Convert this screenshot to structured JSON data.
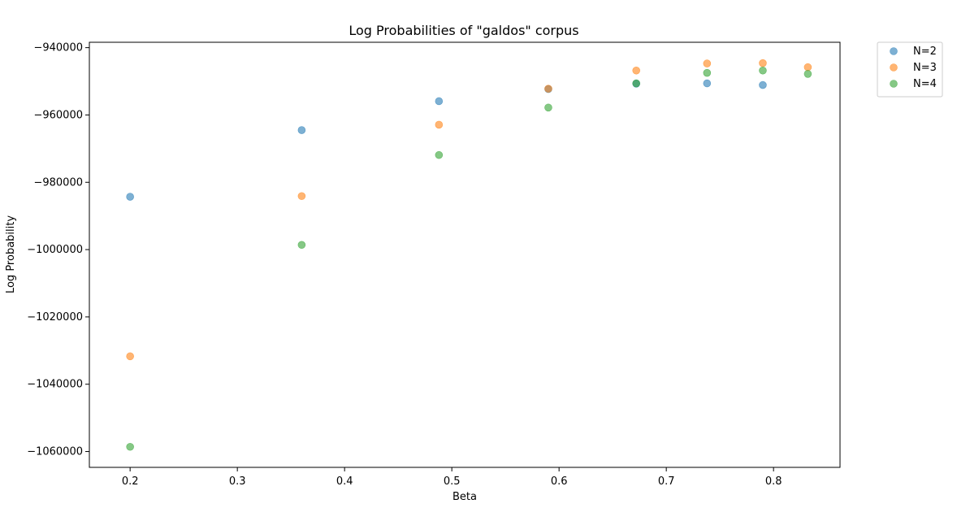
{
  "chart_data": {
    "type": "scatter",
    "title": "Log Probabilities of \"galdos\" corpus",
    "xlabel": "Beta",
    "ylabel": "Log Probability",
    "xlim": [
      0.162,
      0.862
    ],
    "ylim": [
      -1064700,
      -938400
    ],
    "xticks": [
      0.2,
      0.3,
      0.4,
      0.5,
      0.6,
      0.7,
      0.8
    ],
    "xtick_labels": [
      "0.2",
      "0.3",
      "0.4",
      "0.5",
      "0.6",
      "0.7",
      "0.8"
    ],
    "yticks": [
      -940000,
      -960000,
      -980000,
      -1000000,
      -1020000,
      -1040000,
      -1060000
    ],
    "ytick_labels": [
      "−940000",
      "−960000",
      "−980000",
      "−1000000",
      "−1020000",
      "−1040000",
      "−1060000"
    ],
    "grid": false,
    "legend_position": "outside-top-right",
    "x": [
      0.2,
      0.36,
      0.488,
      0.59,
      0.672,
      0.738,
      0.79,
      0.832
    ],
    "series": [
      {
        "name": "N=2",
        "color": "#1f77b4",
        "x": [
          0.2,
          0.36,
          0.488,
          0.59,
          0.672,
          0.738,
          0.79
        ],
        "values": [
          -984300,
          -964500,
          -955900,
          -952300,
          -950700,
          -950600,
          -951100
        ]
      },
      {
        "name": "N=3",
        "color": "#ff7f0e",
        "x": [
          0.2,
          0.36,
          0.488,
          0.59,
          0.672,
          0.738,
          0.79,
          0.832
        ],
        "values": [
          -1031700,
          -984100,
          -962900,
          -952200,
          -946800,
          -944700,
          -944600,
          -945800
        ]
      },
      {
        "name": "N=4",
        "color": "#2ca02c",
        "x": [
          0.2,
          0.36,
          0.488,
          0.59,
          0.672,
          0.738,
          0.79,
          0.832
        ],
        "values": [
          -1058600,
          -998600,
          -971900,
          -957800,
          -950600,
          -947500,
          -946800,
          -947800
        ]
      }
    ]
  }
}
